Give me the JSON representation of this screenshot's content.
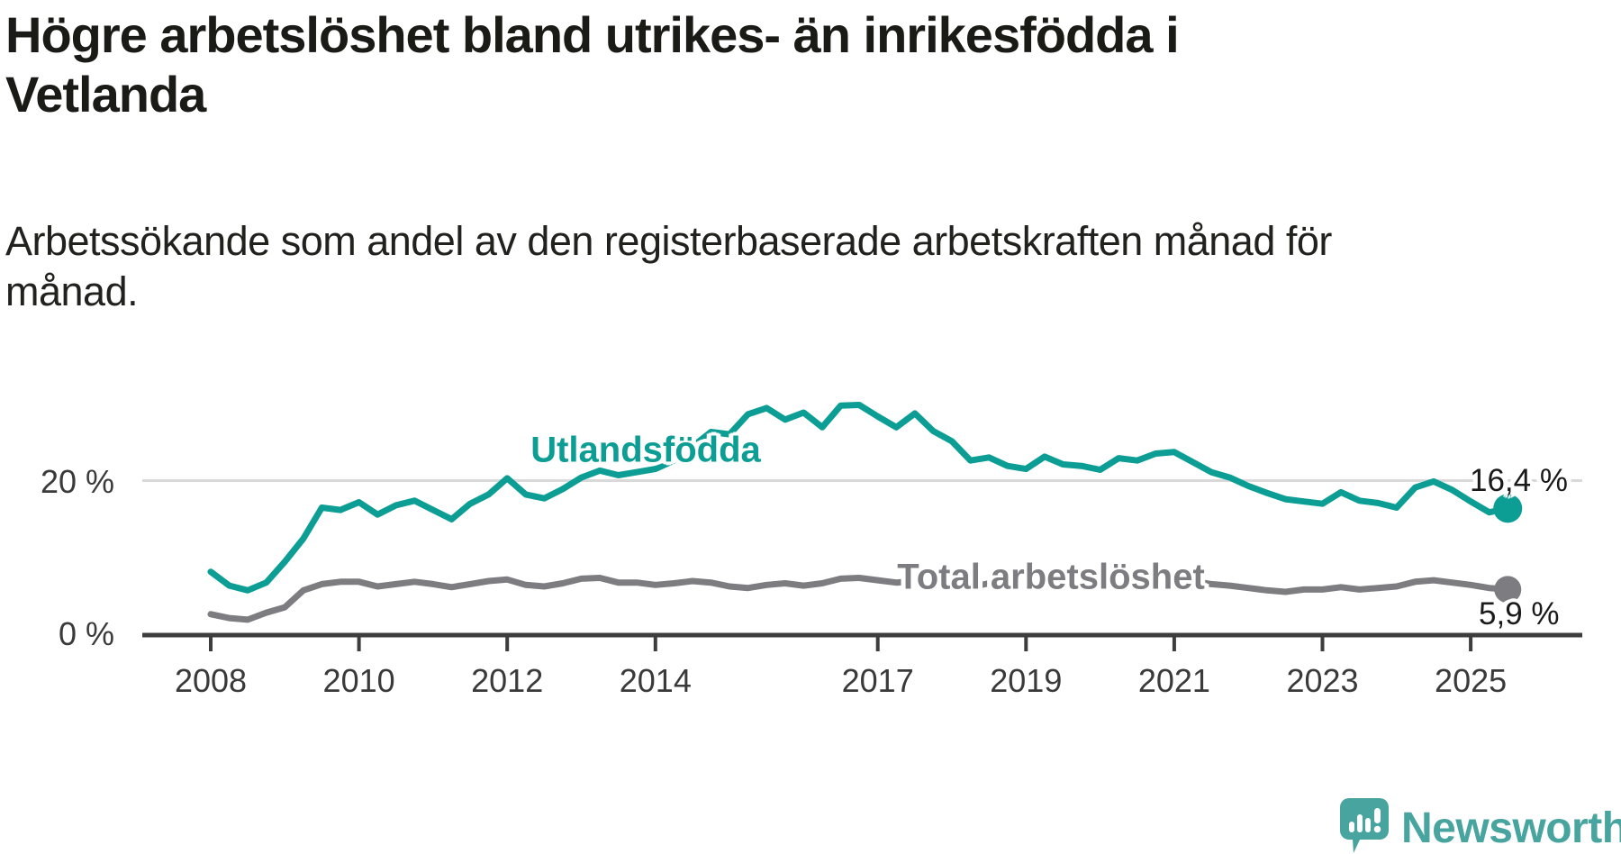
{
  "header": {
    "title": "Högre arbetslöshet bland utrikes- än inrikesfödda i\nVetlanda",
    "subtitle": "Arbetssökande som andel av den registerbaserade arbetskraften månad för\nmånad."
  },
  "chart_data": {
    "type": "line",
    "unit": "%",
    "x_start": 2008.0,
    "x_step": 0.25,
    "x_end": 2025.5,
    "ylim": [
      0,
      31
    ],
    "grid": "single horizontal gridline at 20 %",
    "legend_position": "inline labels next to lines",
    "yticks": [
      {
        "value": 0,
        "label": "0 %"
      },
      {
        "value": 20,
        "label": "20 %"
      }
    ],
    "xticks": [
      {
        "value": 2008,
        "label": "2008"
      },
      {
        "value": 2010,
        "label": "2010"
      },
      {
        "value": 2012,
        "label": "2012"
      },
      {
        "value": 2014,
        "label": "2014"
      },
      {
        "value": 2017,
        "label": "2017"
      },
      {
        "value": 2019,
        "label": "2019"
      },
      {
        "value": 2021,
        "label": "2021"
      },
      {
        "value": 2023,
        "label": "2023"
      },
      {
        "value": 2025,
        "label": "2025"
      }
    ],
    "series": [
      {
        "name": "Utlandsfödda",
        "color": "#0c9e95",
        "end_label": "16,4 %",
        "last_value": 16.4,
        "values": [
          8.2,
          6.4,
          5.8,
          6.8,
          9.5,
          12.5,
          16.5,
          16.2,
          17.2,
          15.6,
          16.8,
          17.4,
          16.2,
          15.0,
          17.0,
          18.2,
          20.3,
          18.2,
          17.7,
          18.9,
          20.4,
          21.3,
          20.7,
          21.1,
          21.5,
          22.6,
          24.4,
          26.3,
          26.0,
          28.6,
          29.4,
          27.9,
          28.8,
          26.9,
          29.7,
          29.8,
          28.3,
          26.9,
          28.7,
          26.4,
          25.1,
          22.6,
          23.0,
          21.9,
          21.5,
          23.1,
          22.1,
          21.9,
          21.4,
          22.9,
          22.6,
          23.5,
          23.7,
          22.4,
          21.1,
          20.4,
          19.3,
          18.4,
          17.6,
          17.3,
          17.0,
          18.5,
          17.4,
          17.1,
          16.5,
          19.1,
          19.9,
          18.8,
          17.3,
          15.9,
          16.4
        ]
      },
      {
        "name": "Total arbetslöshet",
        "color": "#7d7d81",
        "end_label": "5,9 %",
        "last_value": 5.9,
        "values": [
          2.7,
          2.2,
          2.0,
          2.9,
          3.6,
          5.8,
          6.6,
          6.9,
          6.9,
          6.3,
          6.6,
          6.9,
          6.6,
          6.2,
          6.6,
          7.0,
          7.2,
          6.5,
          6.3,
          6.7,
          7.3,
          7.4,
          6.8,
          6.8,
          6.5,
          6.7,
          7.0,
          6.8,
          6.3,
          6.1,
          6.5,
          6.7,
          6.4,
          6.7,
          7.3,
          7.4,
          7.1,
          6.8,
          7.0,
          6.7,
          6.4,
          6.2,
          6.7,
          6.8,
          6.5,
          6.3,
          6.7,
          6.5,
          6.6,
          7.4,
          7.6,
          7.3,
          7.4,
          7.0,
          6.6,
          6.4,
          6.1,
          5.8,
          5.6,
          5.9,
          5.9,
          6.2,
          5.9,
          6.1,
          6.3,
          6.9,
          7.1,
          6.8,
          6.5,
          6.1,
          5.9
        ]
      }
    ]
  },
  "branding": {
    "logo_text": "Newsworthy",
    "logo_color": "#48a49f",
    "logo_icon": "speech-bubble-bar-chart"
  }
}
